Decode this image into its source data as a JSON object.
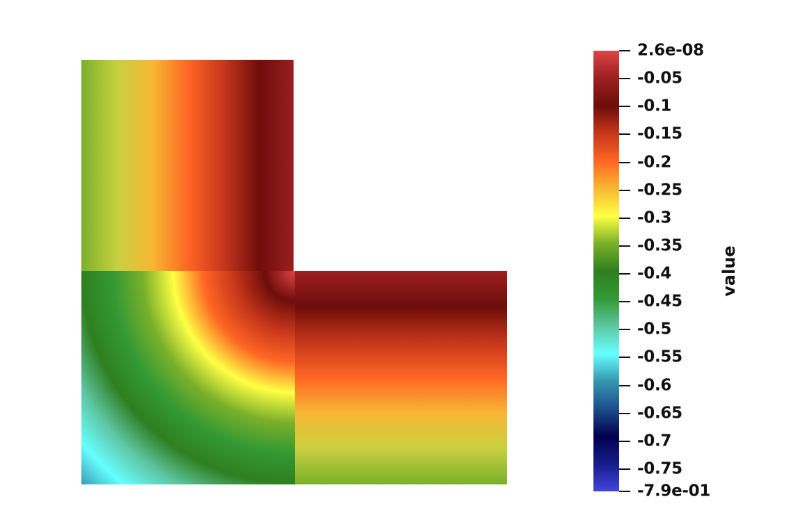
{
  "colorbar": {
    "title": "value",
    "min_label": "-7.9e-01",
    "max_label": "2.6e-08",
    "min": -0.79,
    "max": 2.6e-08,
    "ticks": [
      "2.6e-08",
      "-0.05",
      "-0.1",
      "-0.15",
      "-0.2",
      "-0.25",
      "-0.3",
      "-0.35",
      "-0.4",
      "-0.45",
      "-0.5",
      "-0.55",
      "-0.6",
      "-0.65",
      "-0.7",
      "-0.75",
      "-7.9e-01"
    ],
    "tick_values": [
      2.6e-08,
      -0.05,
      -0.1,
      -0.15,
      -0.2,
      -0.25,
      -0.3,
      -0.35,
      -0.4,
      -0.45,
      -0.5,
      -0.55,
      -0.6,
      -0.65,
      -0.7,
      -0.75,
      -0.79
    ],
    "colormap": [
      "#4444dd",
      "#151d8a",
      "#02004d",
      "#1d4f8c",
      "#3596b0",
      "#66ffff",
      "#5ec6a2",
      "#339933",
      "#2f7f1f",
      "#7ab02a",
      "#ffff44",
      "#f7b733",
      "#ff6624",
      "#c6361a",
      "#6e0d0a",
      "#9c2020",
      "#dd4444"
    ]
  },
  "field": {
    "shape": "L-shaped domain",
    "colors": [
      "#4444dd",
      "#02004d",
      "#66ffff",
      "#339933",
      "#ffff44",
      "#ff6624",
      "#6e0d0a",
      "#dd4444"
    ]
  }
}
